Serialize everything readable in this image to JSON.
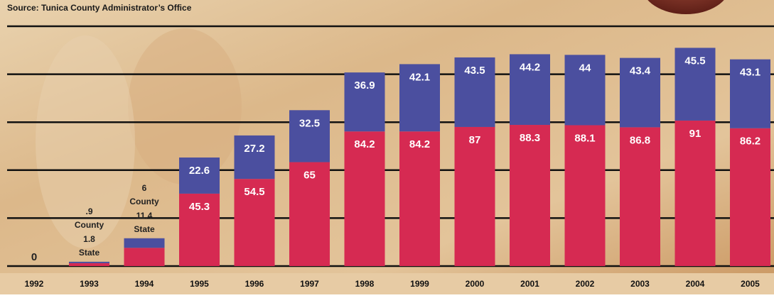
{
  "chart_data": {
    "type": "stacked-bar",
    "subtitle": "Source: Tunica County Administrator’s Office",
    "categories": [
      "1992",
      "1993",
      "1994",
      "1995",
      "1996",
      "1997",
      "1998",
      "1999",
      "2000",
      "2001",
      "2002",
      "2003",
      "2004",
      "2005"
    ],
    "series": [
      {
        "name": "State",
        "color": "#d62a52",
        "values": [
          0,
          1.8,
          11.4,
          45.3,
          54.5,
          65,
          84.2,
          84.2,
          87,
          88.3,
          88.1,
          86.8,
          91,
          86.2
        ]
      },
      {
        "name": "County",
        "color": "#4b4f9f",
        "values": [
          null,
          0.9,
          6,
          22.6,
          27.2,
          32.5,
          36.9,
          42.1,
          43.5,
          44.2,
          44,
          43.4,
          45.5,
          43.1
        ],
        "value_labels": [
          null,
          ".9",
          "6",
          "22.6",
          "27.2",
          "32.5",
          "36.9",
          "42.1",
          "43.5",
          "44.2",
          "44",
          "43.4",
          "45.5",
          "43.1"
        ]
      }
    ],
    "ylim": [
      0,
      150
    ],
    "yticks": [
      0,
      30,
      60,
      90,
      120,
      150
    ],
    "grid": true
  }
}
